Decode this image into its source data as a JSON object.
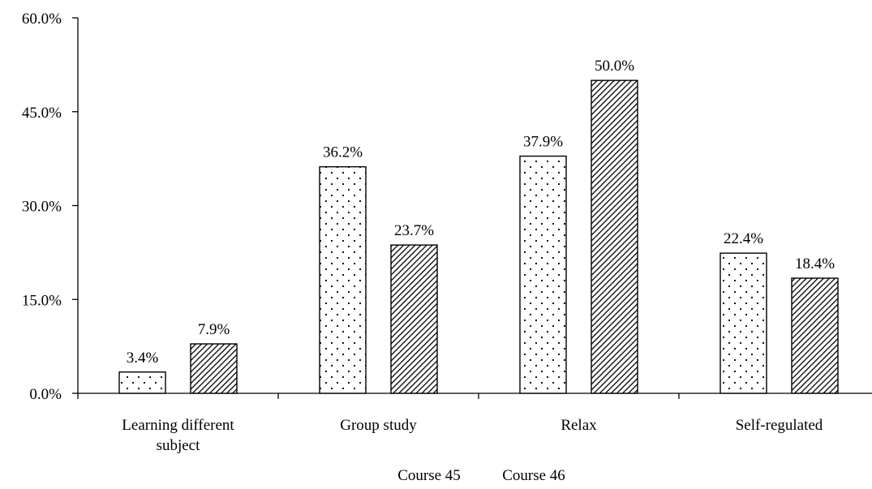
{
  "chart_data": {
    "type": "bar",
    "title": "",
    "xlabel": "",
    "ylabel": "",
    "categories": [
      "Learning different subject",
      "Group study",
      "Relax",
      "Self-regulated"
    ],
    "category_lines": [
      [
        "Learning different",
        "subject"
      ],
      [
        "Group study"
      ],
      [
        "Relax"
      ],
      [
        "Self-regulated"
      ]
    ],
    "series": [
      {
        "name": "Course 45",
        "pattern": "dots",
        "values": [
          3.4,
          36.2,
          37.9,
          22.4
        ],
        "labels": [
          "3.4%",
          "36.2%",
          "37.9%",
          "22.4%"
        ]
      },
      {
        "name": "Course 46",
        "pattern": "diagonal-hatch",
        "values": [
          7.9,
          23.7,
          50.0,
          18.4
        ],
        "labels": [
          "7.9%",
          "23.7%",
          "50.0%",
          "18.4%"
        ]
      }
    ],
    "ylim": [
      0,
      60
    ],
    "yticks": [
      0,
      15,
      30,
      45,
      60
    ],
    "ytick_labels": [
      "0.0%",
      "15.0%",
      "30.0%",
      "45.0%",
      "60.0%"
    ],
    "grid": false,
    "legend_position": "bottom",
    "colors": {
      "fill": "#ffffff",
      "stroke": "#000000"
    }
  }
}
